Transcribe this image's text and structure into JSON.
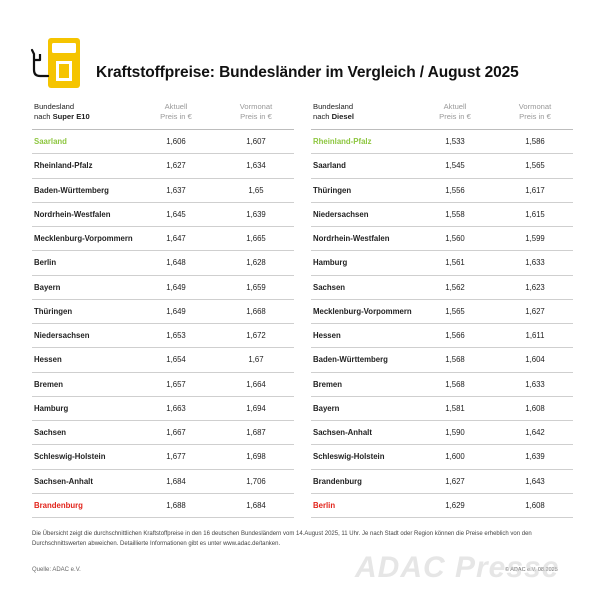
{
  "title": "Kraftstoffpreise: Bundesländer im Vergleich / August 2025",
  "icon": "fuel-pump-icon",
  "colors": {
    "pump_yellow": "#f5c400",
    "green": "#8dc63f",
    "red": "#e2231a"
  },
  "tables": [
    {
      "header": {
        "name_line1": "Bundesland",
        "name_line2_prefix": "nach ",
        "name_line2_bold": "Super E10",
        "current": "Aktuell\nPreis in €",
        "previous": "Vormonat\nPreis in €"
      },
      "rows": [
        {
          "name": "Saarland",
          "current": "1,606",
          "previous": "1,607",
          "highlight": "green"
        },
        {
          "name": "Rheinland-Pfalz",
          "current": "1,627",
          "previous": "1,634"
        },
        {
          "name": "Baden-Württemberg",
          "current": "1,637",
          "previous": "1,65"
        },
        {
          "name": "Nordrhein-Westfalen",
          "current": "1,645",
          "previous": "1,639"
        },
        {
          "name": "Mecklenburg-Vorpommern",
          "current": "1,647",
          "previous": "1,665"
        },
        {
          "name": "Berlin",
          "current": "1,648",
          "previous": "1,628"
        },
        {
          "name": "Bayern",
          "current": "1,649",
          "previous": "1,659"
        },
        {
          "name": "Thüringen",
          "current": "1,649",
          "previous": "1,668"
        },
        {
          "name": "Niedersachsen",
          "current": "1,653",
          "previous": "1,672"
        },
        {
          "name": "Hessen",
          "current": "1,654",
          "previous": "1,67"
        },
        {
          "name": "Bremen",
          "current": "1,657",
          "previous": "1,664"
        },
        {
          "name": "Hamburg",
          "current": "1,663",
          "previous": "1,694"
        },
        {
          "name": "Sachsen",
          "current": "1,667",
          "previous": "1,687"
        },
        {
          "name": "Schleswig-Holstein",
          "current": "1,677",
          "previous": "1,698"
        },
        {
          "name": "Sachsen-Anhalt",
          "current": "1,684",
          "previous": "1,706"
        },
        {
          "name": "Brandenburg",
          "current": "1,688",
          "previous": "1,684",
          "highlight": "red"
        }
      ]
    },
    {
      "header": {
        "name_line1": "Bundesland",
        "name_line2_prefix": "nach ",
        "name_line2_bold": "Diesel",
        "current": "Aktuell\nPreis in €",
        "previous": "Vormonat\nPreis in €"
      },
      "rows": [
        {
          "name": "Rheinland-Pfalz",
          "current": "1,533",
          "previous": "1,586",
          "highlight": "green"
        },
        {
          "name": "Saarland",
          "current": "1,545",
          "previous": "1,565"
        },
        {
          "name": "Thüringen",
          "current": "1,556",
          "previous": "1,617"
        },
        {
          "name": "Niedersachsen",
          "current": "1,558",
          "previous": "1,615"
        },
        {
          "name": "Nordrhein-Westfalen",
          "current": "1,560",
          "previous": "1,599"
        },
        {
          "name": "Hamburg",
          "current": "1,561",
          "previous": "1,633"
        },
        {
          "name": "Sachsen",
          "current": "1,562",
          "previous": "1,623"
        },
        {
          "name": "Mecklenburg-Vorpommern",
          "current": "1,565",
          "previous": "1,627"
        },
        {
          "name": "Hessen",
          "current": "1,566",
          "previous": "1,611"
        },
        {
          "name": "Baden-Württemberg",
          "current": "1,568",
          "previous": "1,604"
        },
        {
          "name": "Bremen",
          "current": "1,568",
          "previous": "1,633"
        },
        {
          "name": "Bayern",
          "current": "1,581",
          "previous": "1,608"
        },
        {
          "name": "Sachsen-Anhalt",
          "current": "1,590",
          "previous": "1,642"
        },
        {
          "name": "Schleswig-Holstein",
          "current": "1,600",
          "previous": "1,639"
        },
        {
          "name": "Brandenburg",
          "current": "1,627",
          "previous": "1,643"
        },
        {
          "name": "Berlin",
          "current": "1,629",
          "previous": "1,608",
          "highlight": "red"
        }
      ]
    }
  ],
  "footnote": "Die Übersicht zeigt die durchschnittlichen Kraftstoffpreise in den 16 deutschen Bundesländern vom 14.August 2025, 11 Uhr. Je nach Stadt oder Region können die Preise erheblich von den Durchschnittswerten abweichen. Detaillierte Informationen gibt es unter www.adac.de/tanken.",
  "source": "Quelle: ADAC e.V.",
  "copyright": "© ADAC e.V. 08.2025",
  "watermark": "ADAC Presse"
}
